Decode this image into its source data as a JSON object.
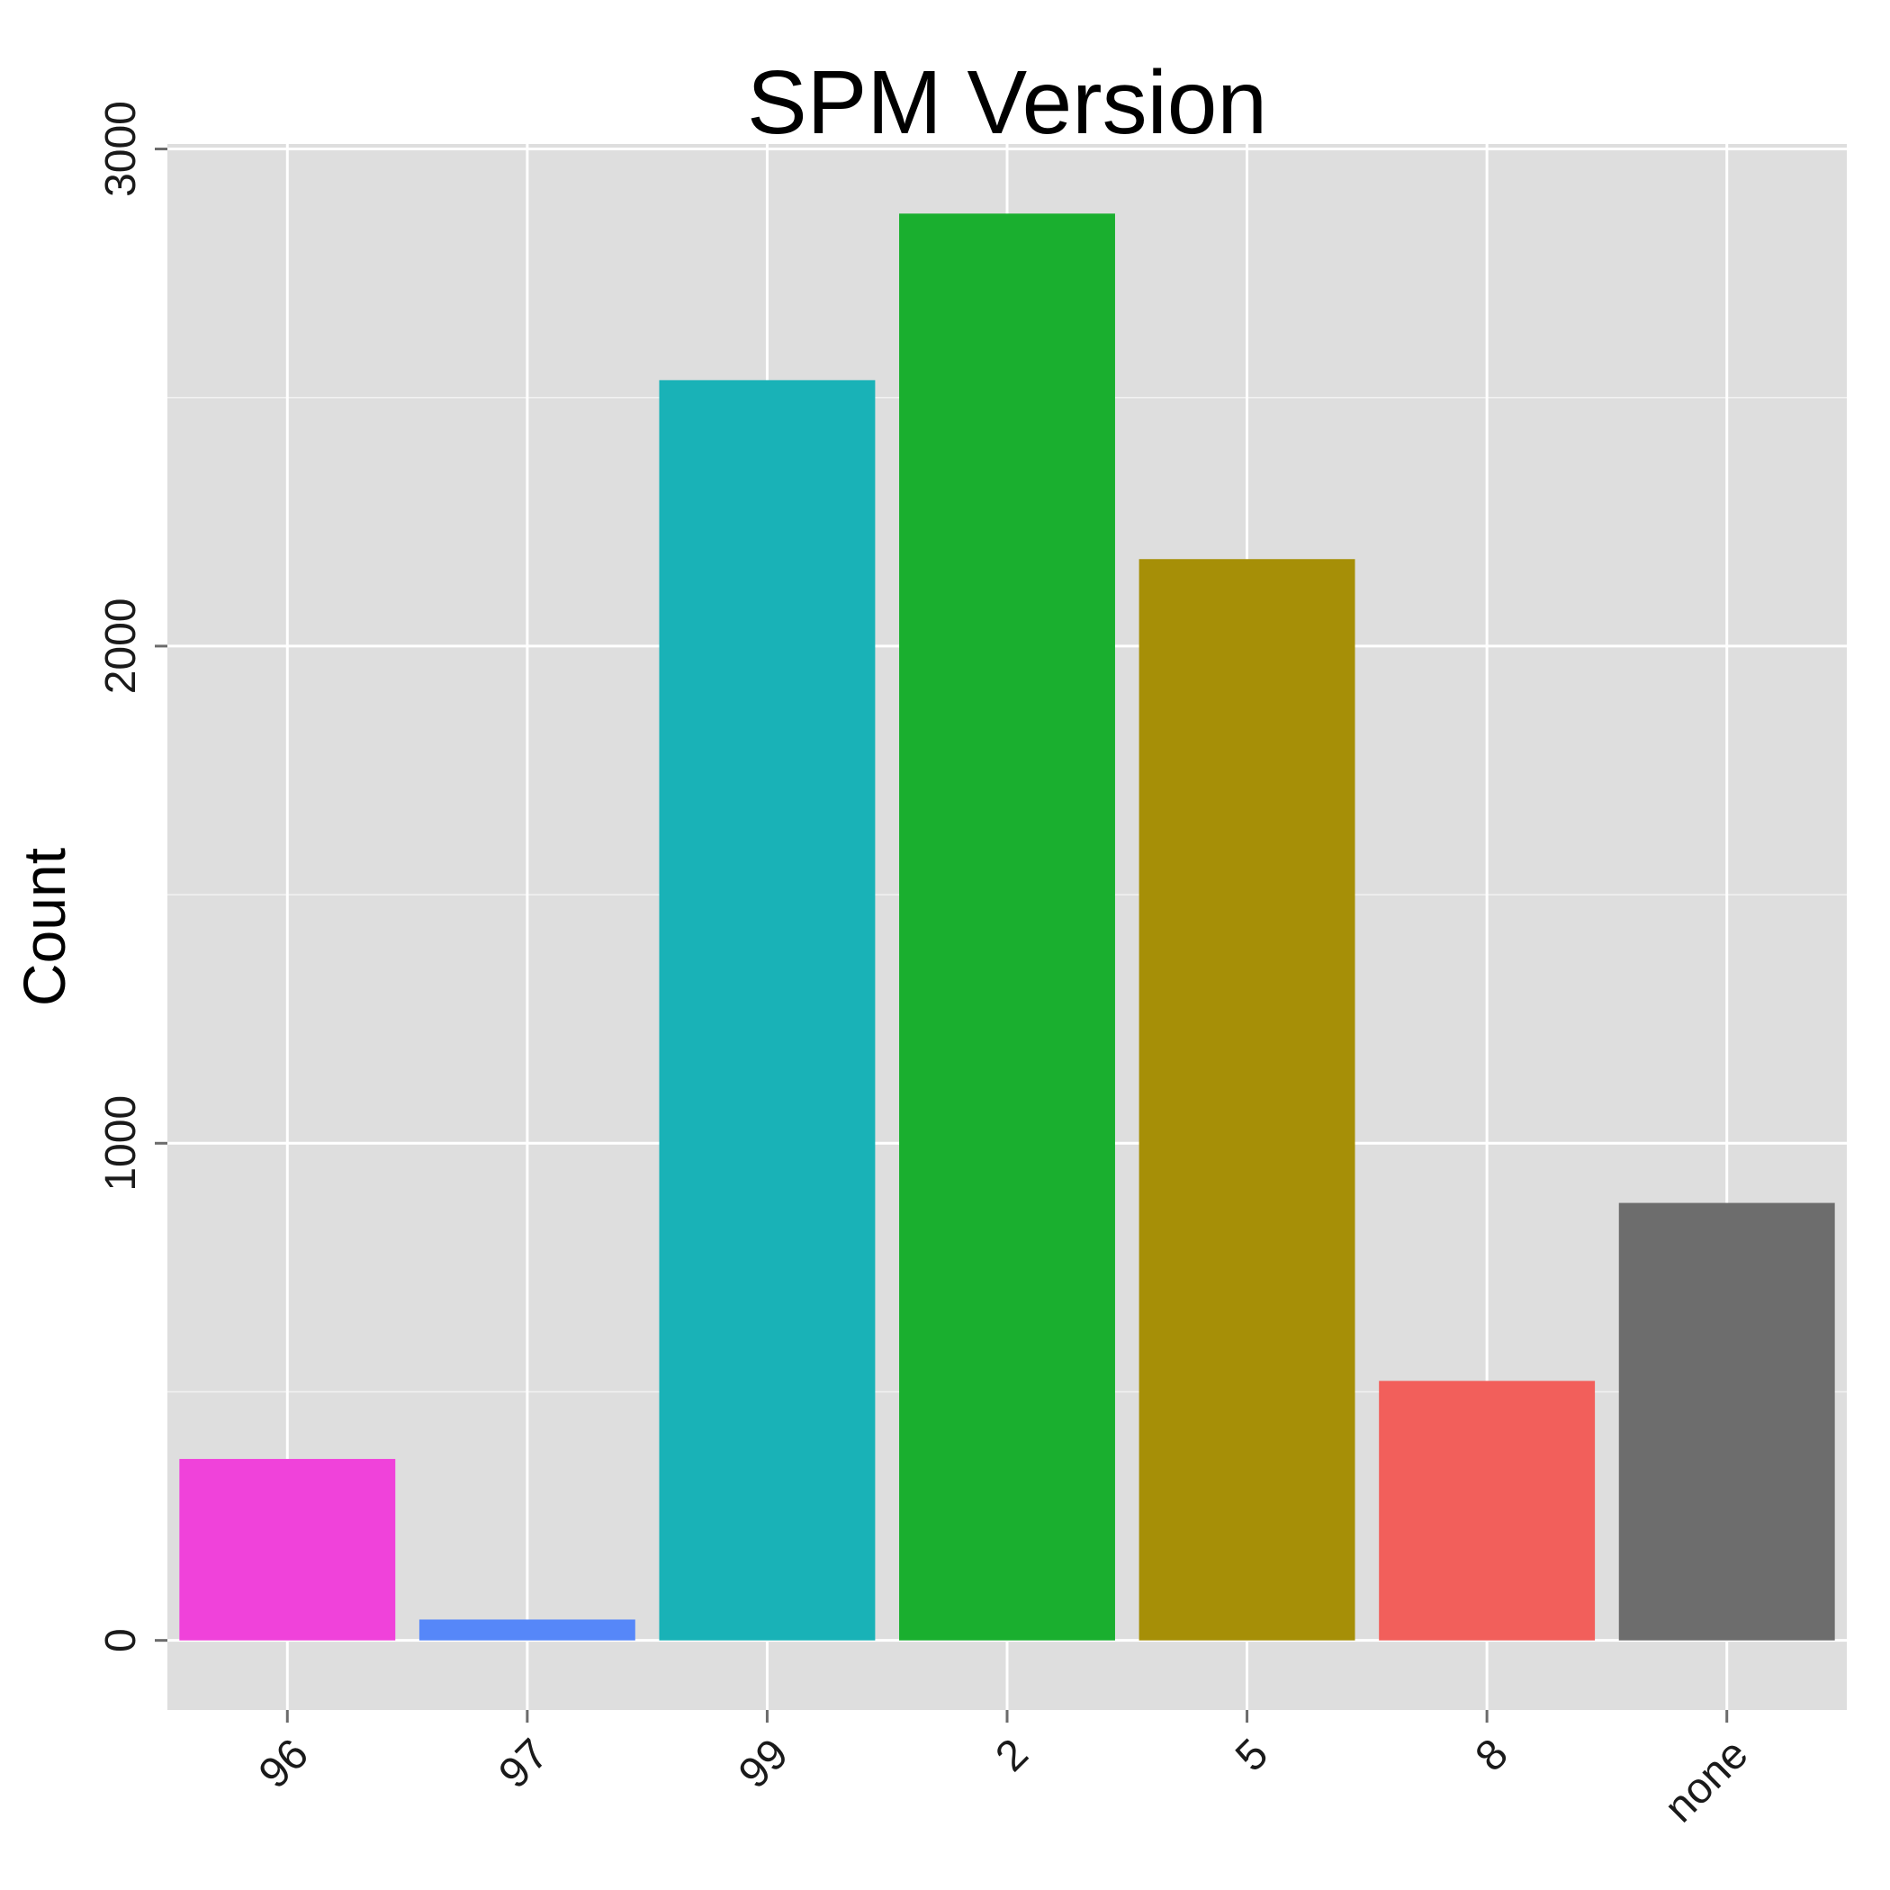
{
  "chart_data": {
    "type": "bar",
    "title": "SPM Version",
    "xlabel": "",
    "ylabel": "Count",
    "categories": [
      "96",
      "97",
      "99",
      "2",
      "5",
      "8",
      "none"
    ],
    "values": [
      365,
      42,
      2535,
      2870,
      2175,
      522,
      880
    ],
    "colors": [
      "#F042DA",
      "#5687F9",
      "#19B2B7",
      "#1AAF2F",
      "#A68F07",
      "#F25F5B",
      "#6D6D6D"
    ],
    "ylim": [
      -140,
      3010
    ],
    "yticks": [
      0,
      1000,
      2000,
      3000
    ],
    "ytick_labels": [
      "0",
      "1000",
      "2000",
      "3000"
    ],
    "grid": true,
    "legend": "none",
    "panel_background": "#DEDEDE",
    "grid_color": "#FFFFFF"
  }
}
